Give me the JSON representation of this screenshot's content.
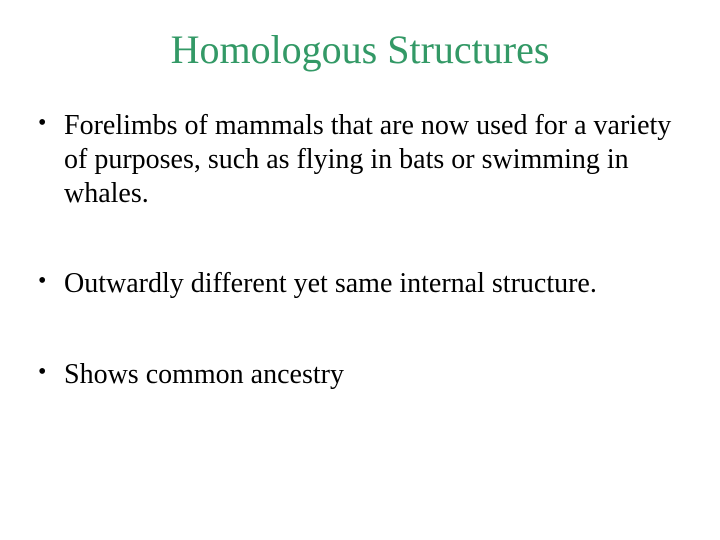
{
  "slide": {
    "title": "Homologous Structures",
    "title_color": "#339966",
    "title_fontsize": 40,
    "body_fontsize": 28,
    "background_color": "#ffffff",
    "text_color": "#000000",
    "bullets": [
      "Forelimbs of mammals that are now used for a variety of purposes, such as flying in bats or swimming in whales.",
      "Outwardly different yet same internal structure.",
      "Shows common ancestry"
    ]
  }
}
